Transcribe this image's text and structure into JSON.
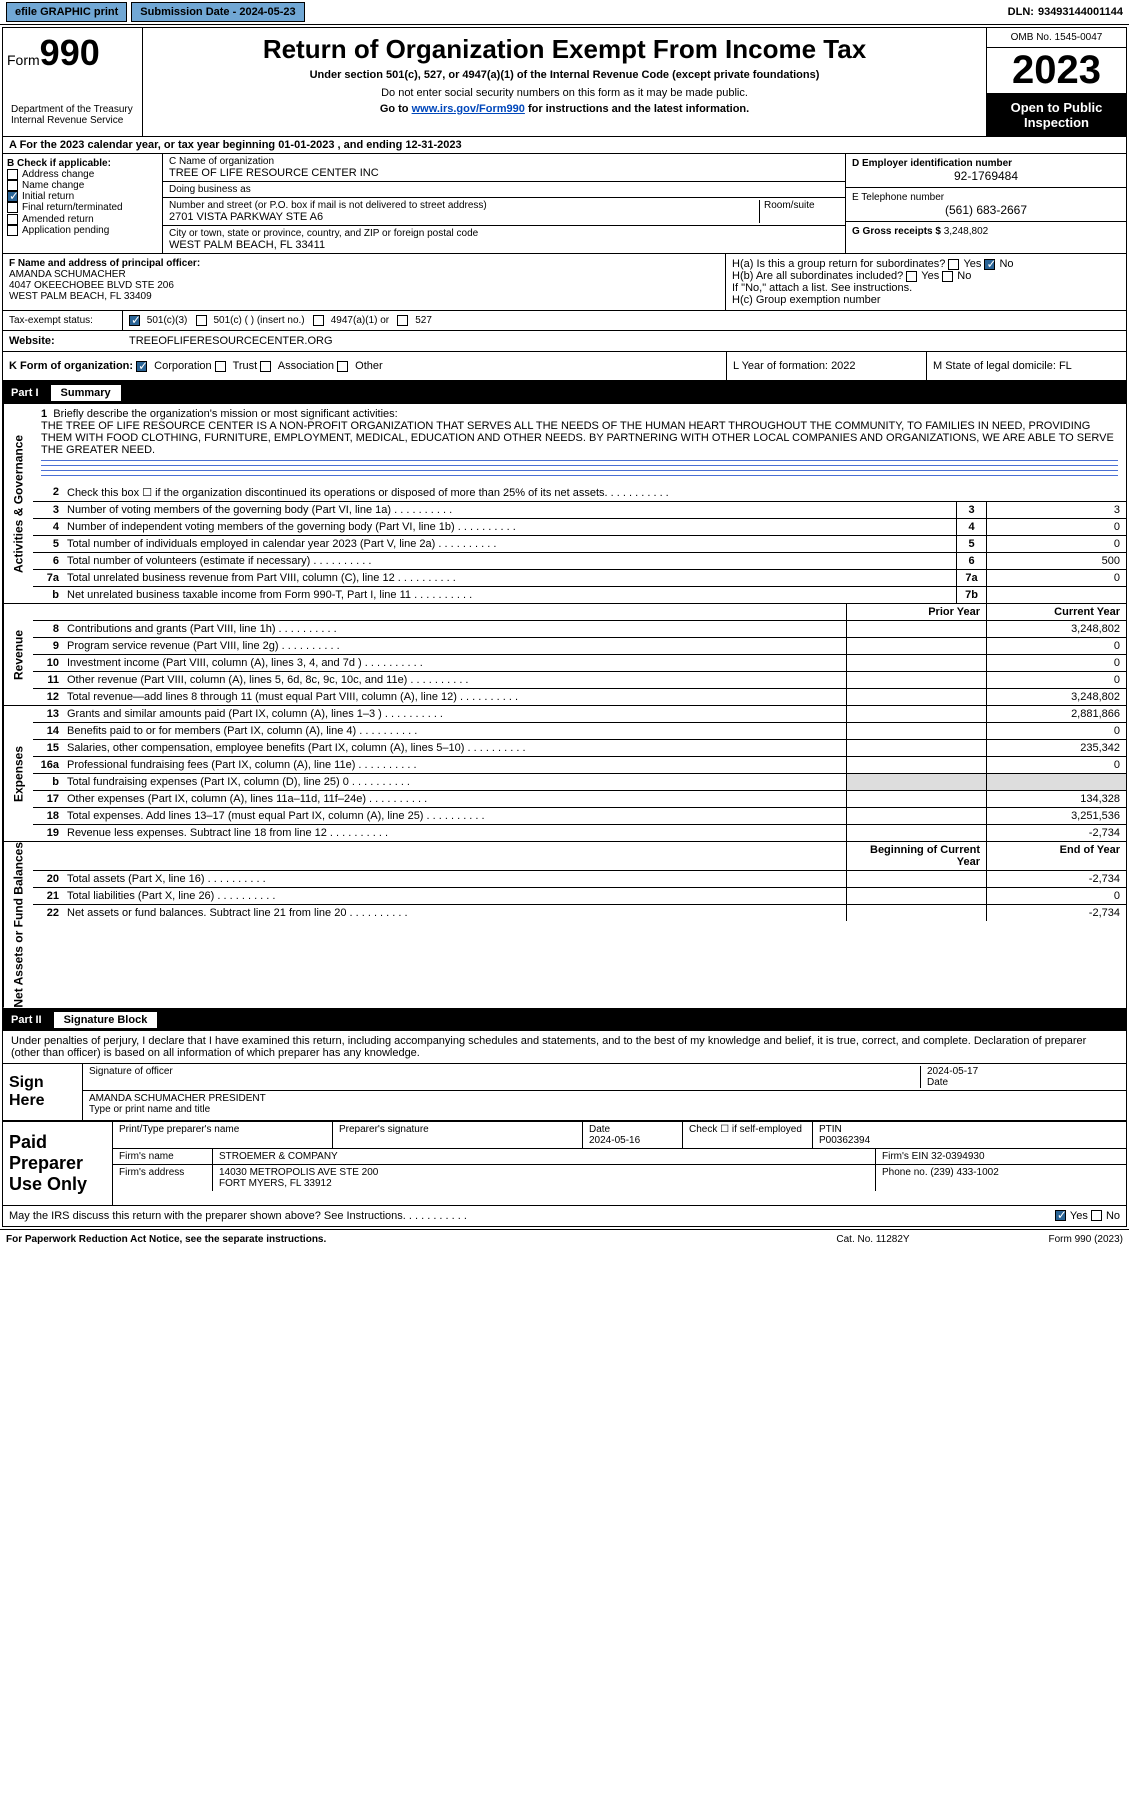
{
  "topbar": {
    "efile": "efile GRAPHIC print",
    "subdate_label": "Submission Date - ",
    "subdate": "2024-05-23",
    "dln_label": "DLN: ",
    "dln": "93493144001144"
  },
  "header": {
    "form_label": "Form",
    "form_num": "990",
    "title": "Return of Organization Exempt From Income Tax",
    "subtitle": "Under section 501(c), 527, or 4947(a)(1) of the Internal Revenue Code (except private foundations)",
    "warn": "Do not enter social security numbers on this form as it may be made public.",
    "goto": "Go to www.irs.gov/Form990 for instructions and the latest information.",
    "omb": "OMB No. 1545-0047",
    "year": "2023",
    "open": "Open to Public Inspection",
    "dept": "Department of the Treasury",
    "irs": "Internal Revenue Service"
  },
  "rowA": {
    "text": "A For the 2023 calendar year, or tax year beginning 01-01-2023   , and ending 12-31-2023"
  },
  "colB": {
    "label": "B Check if applicable:",
    "opts": [
      "Address change",
      "Name change",
      "Initial return",
      "Final return/terminated",
      "Amended return",
      "Application pending"
    ],
    "checked_idx": 2
  },
  "colC": {
    "name_label": "C Name of organization",
    "name": "TREE OF LIFE RESOURCE CENTER INC",
    "dba_label": "Doing business as",
    "dba": "",
    "street_label": "Number and street (or P.O. box if mail is not delivered to street address)",
    "room_label": "Room/suite",
    "street": "2701 VISTA PARKWAY STE A6",
    "city_label": "City or town, state or province, country, and ZIP or foreign postal code",
    "city": "WEST PALM BEACH, FL  33411"
  },
  "colD": {
    "label": "D Employer identification number",
    "val": "92-1769484"
  },
  "colE": {
    "label": "E Telephone number",
    "val": "(561) 683-2667"
  },
  "colG": {
    "label": "G Gross receipts $",
    "val": "3,248,802"
  },
  "colF": {
    "label": "F Name and address of principal officer:",
    "name": "AMANDA SCHUMACHER",
    "addr1": "4047 OKEECHOBEE BLVD STE 206",
    "addr2": "WEST PALM BEACH, FL  33409"
  },
  "colH": {
    "a": "H(a)  Is this a group return for subordinates?",
    "b": "H(b)  Are all subordinates included?",
    "b2": "If \"No,\" attach a list. See instructions.",
    "c": "H(c)  Group exemption number",
    "yes": "Yes",
    "no": "No"
  },
  "rowI": {
    "label": "Tax-exempt status:",
    "o1": "501(c)(3)",
    "o2": "501(c) (  ) (insert no.)",
    "o3": "4947(a)(1) or",
    "o4": "527"
  },
  "rowJ": {
    "label": "Website:",
    "val": "TREEOFLIFERESOURCECENTER.ORG"
  },
  "rowK": {
    "label": "K Form of organization:",
    "o1": "Corporation",
    "o2": "Trust",
    "o3": "Association",
    "o4": "Other"
  },
  "rowL": {
    "label": "L Year of formation:",
    "val": "2022"
  },
  "rowM": {
    "label": "M State of legal domicile:",
    "val": "FL"
  },
  "part1": {
    "num": "Part I",
    "title": "Summary"
  },
  "mission": {
    "q": "Briefly describe the organization's mission or most significant activities:",
    "text": "THE TREE OF LIFE RESOURCE CENTER IS A NON-PROFIT ORGANIZATION THAT SERVES ALL THE NEEDS OF THE HUMAN HEART THROUGHOUT THE COMMUNITY, TO FAMILIES IN NEED, PROVIDING THEM WITH FOOD CLOTHING, FURNITURE, EMPLOYMENT, MEDICAL, EDUCATION AND OTHER NEEDS. BY PARTNERING WITH OTHER LOCAL COMPANIES AND ORGANIZATIONS, WE ARE ABLE TO SERVE THE GREATER NEED."
  },
  "lines_gov": [
    {
      "n": "2",
      "t": "Check this box ☐ if the organization discontinued its operations or disposed of more than 25% of its net assets."
    },
    {
      "n": "3",
      "t": "Number of voting members of the governing body (Part VI, line 1a)",
      "box": "3",
      "v": "3"
    },
    {
      "n": "4",
      "t": "Number of independent voting members of the governing body (Part VI, line 1b)",
      "box": "4",
      "v": "0"
    },
    {
      "n": "5",
      "t": "Total number of individuals employed in calendar year 2023 (Part V, line 2a)",
      "box": "5",
      "v": "0"
    },
    {
      "n": "6",
      "t": "Total number of volunteers (estimate if necessary)",
      "box": "6",
      "v": "500"
    },
    {
      "n": "7a",
      "t": "Total unrelated business revenue from Part VIII, column (C), line 12",
      "box": "7a",
      "v": "0"
    },
    {
      "n": "b",
      "t": "Net unrelated business taxable income from Form 990-T, Part I, line 11",
      "box": "7b",
      "v": ""
    }
  ],
  "col_headers": {
    "prior": "Prior Year",
    "current": "Current Year",
    "beg": "Beginning of Current Year",
    "end": "End of Year"
  },
  "lines_rev": [
    {
      "n": "8",
      "t": "Contributions and grants (Part VIII, line 1h)",
      "p": "",
      "c": "3,248,802"
    },
    {
      "n": "9",
      "t": "Program service revenue (Part VIII, line 2g)",
      "p": "",
      "c": "0"
    },
    {
      "n": "10",
      "t": "Investment income (Part VIII, column (A), lines 3, 4, and 7d )",
      "p": "",
      "c": "0"
    },
    {
      "n": "11",
      "t": "Other revenue (Part VIII, column (A), lines 5, 6d, 8c, 9c, 10c, and 11e)",
      "p": "",
      "c": "0"
    },
    {
      "n": "12",
      "t": "Total revenue—add lines 8 through 11 (must equal Part VIII, column (A), line 12)",
      "p": "",
      "c": "3,248,802"
    }
  ],
  "lines_exp": [
    {
      "n": "13",
      "t": "Grants and similar amounts paid (Part IX, column (A), lines 1–3 )",
      "p": "",
      "c": "2,881,866"
    },
    {
      "n": "14",
      "t": "Benefits paid to or for members (Part IX, column (A), line 4)",
      "p": "",
      "c": "0"
    },
    {
      "n": "15",
      "t": "Salaries, other compensation, employee benefits (Part IX, column (A), lines 5–10)",
      "p": "",
      "c": "235,342"
    },
    {
      "n": "16a",
      "t": "Professional fundraising fees (Part IX, column (A), line 11e)",
      "p": "",
      "c": "0"
    },
    {
      "n": "b",
      "t": "Total fundraising expenses (Part IX, column (D), line 25) 0",
      "p": null,
      "c": null
    },
    {
      "n": "17",
      "t": "Other expenses (Part IX, column (A), lines 11a–11d, 11f–24e)",
      "p": "",
      "c": "134,328"
    },
    {
      "n": "18",
      "t": "Total expenses. Add lines 13–17 (must equal Part IX, column (A), line 25)",
      "p": "",
      "c": "3,251,536"
    },
    {
      "n": "19",
      "t": "Revenue less expenses. Subtract line 18 from line 12",
      "p": "",
      "c": "-2,734"
    }
  ],
  "lines_net": [
    {
      "n": "20",
      "t": "Total assets (Part X, line 16)",
      "p": "",
      "c": "-2,734"
    },
    {
      "n": "21",
      "t": "Total liabilities (Part X, line 26)",
      "p": "",
      "c": "0"
    },
    {
      "n": "22",
      "t": "Net assets or fund balances. Subtract line 21 from line 20",
      "p": "",
      "c": "-2,734"
    }
  ],
  "part2": {
    "num": "Part II",
    "title": "Signature Block"
  },
  "sig": {
    "decl": "Under penalties of perjury, I declare that I have examined this return, including accompanying schedules and statements, and to the best of my knowledge and belief, it is true, correct, and complete. Declaration of preparer (other than officer) is based on all information of which preparer has any knowledge.",
    "sign_here": "Sign Here",
    "sig_officer": "Signature of officer",
    "date": "Date",
    "date_val": "2024-05-17",
    "officer": "AMANDA SCHUMACHER PRESIDENT",
    "type_label": "Type or print name and title"
  },
  "prep": {
    "label": "Paid Preparer Use Only",
    "pname_label": "Print/Type preparer's name",
    "psig_label": "Preparer's signature",
    "pdate_label": "Date",
    "pdate": "2024-05-16",
    "check_label": "Check ☐ if self-employed",
    "ptin_label": "PTIN",
    "ptin": "P00362394",
    "firm_name_label": "Firm's name",
    "firm_name": "STROEMER & COMPANY",
    "firm_ein_label": "Firm's EIN",
    "firm_ein": "32-0394930",
    "firm_addr_label": "Firm's address",
    "firm_addr1": "14030 METROPOLIS AVE STE 200",
    "firm_addr2": "FORT MYERS, FL  33912",
    "phone_label": "Phone no.",
    "phone": "(239) 433-1002"
  },
  "discuss": {
    "q": "May the IRS discuss this return with the preparer shown above? See Instructions.",
    "yes": "Yes",
    "no": "No"
  },
  "footer": {
    "pra": "For Paperwork Reduction Act Notice, see the separate instructions.",
    "cat": "Cat. No. 11282Y",
    "form": "Form 990 (2023)"
  },
  "vtabs": {
    "gov": "Activities & Governance",
    "rev": "Revenue",
    "exp": "Expenses",
    "net": "Net Assets or Fund Balances"
  }
}
